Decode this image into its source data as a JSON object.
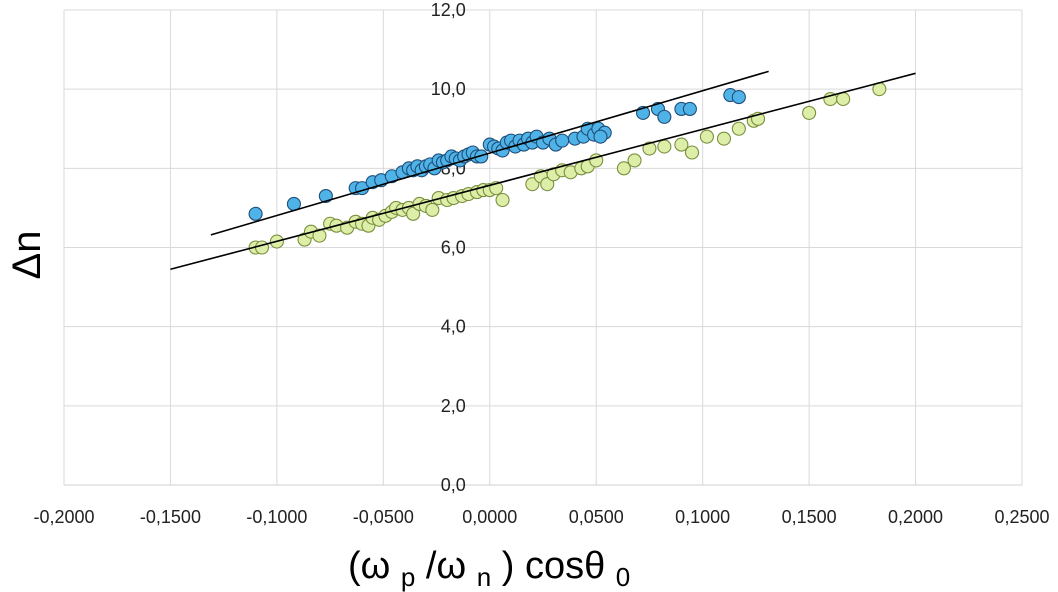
{
  "chart_data": {
    "type": "scatter",
    "title": "",
    "xlabel": {
      "open": "(ω",
      "sub1": "p",
      "mid": " /ω",
      "sub2": "n",
      "close": ") cosθ",
      "sub3": "0"
    },
    "ylabel": "Δn",
    "xlim": [
      -0.2,
      0.25
    ],
    "ylim": [
      0,
      12
    ],
    "x_ticks": [
      -0.2,
      -0.15,
      -0.1,
      -0.05,
      0,
      0.05,
      0.1,
      0.15,
      0.2,
      0.25
    ],
    "x_tick_labels": [
      "-0,2000",
      "-0,1500",
      "-0,1000",
      "-0,0500",
      "0,0000",
      "0,0500",
      "0,1000",
      "0,1500",
      "0,2000",
      "0,2500"
    ],
    "y_ticks": [
      0,
      2,
      4,
      6,
      8,
      10,
      12
    ],
    "y_tick_labels": [
      "0,0",
      "2,0",
      "4,0",
      "6,0",
      "8,0",
      "10,0",
      "12,0"
    ],
    "grid": true,
    "series": [
      {
        "name": "blue",
        "color": "#4fb3e8",
        "stroke": "#1f4e79",
        "points": [
          [
            -0.11,
            6.85
          ],
          [
            -0.092,
            7.1
          ],
          [
            -0.077,
            7.3
          ],
          [
            -0.063,
            7.5
          ],
          [
            -0.06,
            7.5
          ],
          [
            -0.055,
            7.65
          ],
          [
            -0.051,
            7.7
          ],
          [
            -0.046,
            7.8
          ],
          [
            -0.041,
            7.9
          ],
          [
            -0.038,
            8.0
          ],
          [
            -0.036,
            7.95
          ],
          [
            -0.034,
            8.05
          ],
          [
            -0.032,
            7.95
          ],
          [
            -0.03,
            8.05
          ],
          [
            -0.028,
            8.1
          ],
          [
            -0.026,
            8.0
          ],
          [
            -0.024,
            8.2
          ],
          [
            -0.022,
            8.15
          ],
          [
            -0.02,
            8.2
          ],
          [
            -0.018,
            8.3
          ],
          [
            -0.016,
            8.25
          ],
          [
            -0.014,
            8.2
          ],
          [
            -0.012,
            8.3
          ],
          [
            -0.01,
            8.35
          ],
          [
            -0.008,
            8.4
          ],
          [
            -0.006,
            8.3
          ],
          [
            -0.004,
            8.3
          ],
          [
            0.0,
            8.6
          ],
          [
            0.002,
            8.55
          ],
          [
            0.004,
            8.5
          ],
          [
            0.006,
            8.45
          ],
          [
            0.008,
            8.65
          ],
          [
            0.01,
            8.7
          ],
          [
            0.012,
            8.55
          ],
          [
            0.014,
            8.7
          ],
          [
            0.016,
            8.6
          ],
          [
            0.018,
            8.75
          ],
          [
            0.02,
            8.65
          ],
          [
            0.022,
            8.8
          ],
          [
            0.025,
            8.65
          ],
          [
            0.028,
            8.75
          ],
          [
            0.031,
            8.6
          ],
          [
            0.034,
            8.7
          ],
          [
            0.04,
            8.75
          ],
          [
            0.044,
            8.8
          ],
          [
            0.046,
            9.0
          ],
          [
            0.049,
            8.85
          ],
          [
            0.051,
            9.0
          ],
          [
            0.054,
            8.9
          ],
          [
            0.052,
            8.8
          ],
          [
            0.072,
            9.4
          ],
          [
            0.079,
            9.5
          ],
          [
            0.082,
            9.3
          ],
          [
            0.09,
            9.5
          ],
          [
            0.094,
            9.5
          ],
          [
            0.113,
            9.85
          ],
          [
            0.117,
            9.8
          ]
        ],
        "fit": {
          "x": [
            -0.131,
            0.131
          ],
          "y": [
            6.32,
            10.45
          ]
        }
      },
      {
        "name": "green",
        "color": "#ddeea8",
        "stroke": "#7a8f3e",
        "points": [
          [
            -0.11,
            6.0
          ],
          [
            -0.107,
            6.0
          ],
          [
            -0.1,
            6.15
          ],
          [
            -0.087,
            6.2
          ],
          [
            -0.084,
            6.4
          ],
          [
            -0.08,
            6.3
          ],
          [
            -0.075,
            6.6
          ],
          [
            -0.072,
            6.55
          ],
          [
            -0.067,
            6.5
          ],
          [
            -0.063,
            6.65
          ],
          [
            -0.06,
            6.6
          ],
          [
            -0.057,
            6.55
          ],
          [
            -0.055,
            6.75
          ],
          [
            -0.052,
            6.7
          ],
          [
            -0.049,
            6.8
          ],
          [
            -0.046,
            6.9
          ],
          [
            -0.044,
            7.0
          ],
          [
            -0.041,
            6.95
          ],
          [
            -0.038,
            7.0
          ],
          [
            -0.036,
            6.85
          ],
          [
            -0.033,
            7.1
          ],
          [
            -0.03,
            7.05
          ],
          [
            -0.027,
            6.95
          ],
          [
            -0.024,
            7.25
          ],
          [
            -0.02,
            7.2
          ],
          [
            -0.017,
            7.25
          ],
          [
            -0.013,
            7.3
          ],
          [
            -0.01,
            7.35
          ],
          [
            -0.006,
            7.4
          ],
          [
            -0.003,
            7.45
          ],
          [
            0.0,
            7.45
          ],
          [
            0.003,
            7.5
          ],
          [
            0.006,
            7.2
          ],
          [
            0.02,
            7.6
          ],
          [
            0.024,
            7.8
          ],
          [
            0.027,
            7.6
          ],
          [
            0.03,
            7.85
          ],
          [
            0.034,
            7.95
          ],
          [
            0.038,
            7.9
          ],
          [
            0.043,
            8.0
          ],
          [
            0.046,
            8.05
          ],
          [
            0.05,
            8.2
          ],
          [
            0.063,
            8.0
          ],
          [
            0.068,
            8.2
          ],
          [
            0.075,
            8.5
          ],
          [
            0.082,
            8.55
          ],
          [
            0.09,
            8.6
          ],
          [
            0.095,
            8.4
          ],
          [
            0.102,
            8.8
          ],
          [
            0.11,
            8.75
          ],
          [
            0.117,
            9.0
          ],
          [
            0.124,
            9.2
          ],
          [
            0.126,
            9.25
          ],
          [
            0.15,
            9.4
          ],
          [
            0.16,
            9.75
          ],
          [
            0.166,
            9.75
          ],
          [
            0.183,
            10.0
          ]
        ],
        "fit": {
          "x": [
            -0.15,
            0.2
          ],
          "y": [
            5.45,
            10.4
          ]
        }
      }
    ]
  }
}
